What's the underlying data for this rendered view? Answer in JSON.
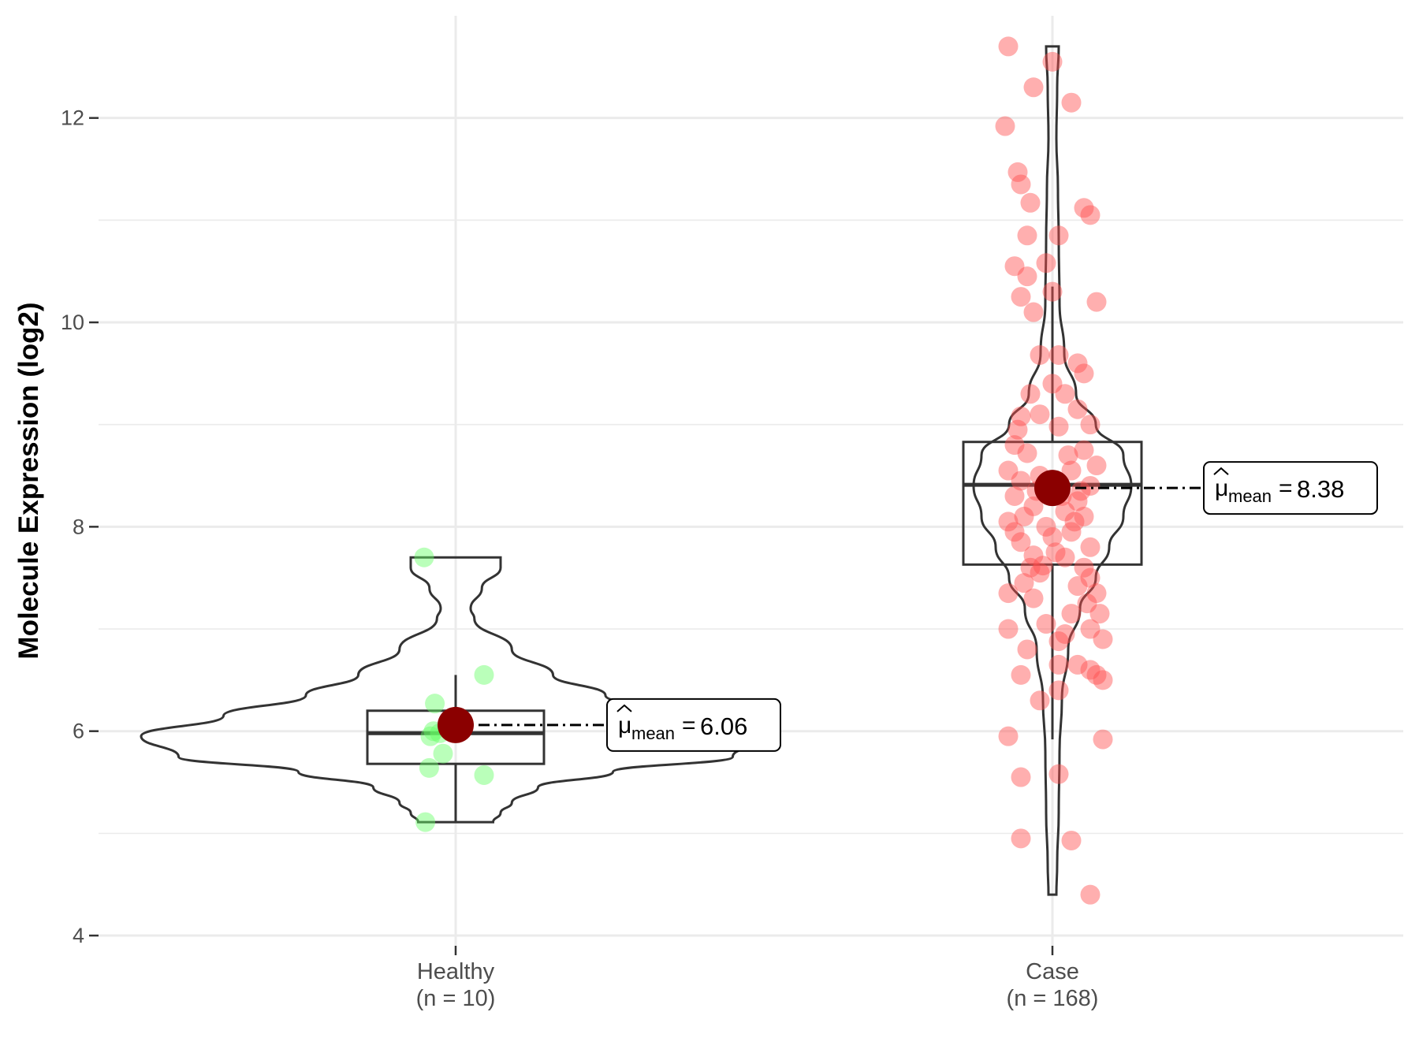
{
  "chart_data": {
    "type": "violin",
    "title": "",
    "xlabel": "",
    "ylabel": "Molecule Expression (log2)",
    "ylim": [
      3.9,
      13.0
    ],
    "y_ticks": [
      4,
      6,
      8,
      10,
      12
    ],
    "y_tick_labels": [
      "4",
      "6",
      "8",
      "10",
      "12"
    ],
    "grid": true,
    "groups": [
      {
        "name": "Healthy",
        "count_label": "(n = 10)",
        "color": "#66ff66",
        "mean": 6.06,
        "mean_label": "6.06",
        "box": {
          "q1": 5.68,
          "median": 5.98,
          "q3": 6.2,
          "whisker_low": 5.11,
          "whisker_high": 6.55
        },
        "violin_range": [
          5.11,
          7.7
        ],
        "violin_profile": [
          [
            5.11,
            0.5
          ],
          [
            5.2,
            0.6
          ],
          [
            5.3,
            0.75
          ],
          [
            5.45,
            1.1
          ],
          [
            5.6,
            2.1
          ],
          [
            5.75,
            3.7
          ],
          [
            5.95,
            4.2
          ],
          [
            6.15,
            3.1
          ],
          [
            6.35,
            2.0
          ],
          [
            6.55,
            1.3
          ],
          [
            6.8,
            0.75
          ],
          [
            7.1,
            0.25
          ],
          [
            7.2,
            0.2
          ],
          [
            7.4,
            0.35
          ],
          [
            7.6,
            0.6
          ],
          [
            7.7,
            0.6
          ]
        ],
        "points": [
          [
            -0.5,
            7.7
          ],
          [
            0.45,
            6.55
          ],
          [
            -0.33,
            6.27
          ],
          [
            -0.35,
            6.0
          ],
          [
            -0.4,
            5.95
          ],
          [
            -0.2,
            5.78
          ],
          [
            -0.42,
            5.64
          ],
          [
            0.45,
            5.57
          ],
          [
            -0.48,
            5.11
          ],
          [
            -0.25,
            5.98
          ]
        ]
      },
      {
        "name": "Case",
        "count_label": "(n = 168)",
        "color": "#ff4d4d",
        "mean": 8.38,
        "mean_label": "8.38",
        "box": {
          "q1": 7.63,
          "median": 8.41,
          "q3": 8.83,
          "whisker_low": 5.92,
          "whisker_high": 10.35
        },
        "violin_range": [
          4.4,
          12.7
        ],
        "violin_profile": [
          [
            4.4,
            0.05
          ],
          [
            4.7,
            0.06
          ],
          [
            5.2,
            0.08
          ],
          [
            5.8,
            0.09
          ],
          [
            6.3,
            0.12
          ],
          [
            6.8,
            0.2
          ],
          [
            7.2,
            0.35
          ],
          [
            7.5,
            0.55
          ],
          [
            7.8,
            0.72
          ],
          [
            8.1,
            0.9
          ],
          [
            8.4,
            1.0
          ],
          [
            8.7,
            0.9
          ],
          [
            9.0,
            0.55
          ],
          [
            9.3,
            0.3
          ],
          [
            9.7,
            0.15
          ],
          [
            10.2,
            0.09
          ],
          [
            10.8,
            0.08
          ],
          [
            11.3,
            0.07
          ],
          [
            11.8,
            0.05
          ],
          [
            12.3,
            0.06
          ],
          [
            12.7,
            0.08
          ]
        ],
        "points": [
          [
            -0.7,
            12.7
          ],
          [
            0.0,
            12.55
          ],
          [
            -0.3,
            12.3
          ],
          [
            0.3,
            12.15
          ],
          [
            -0.75,
            11.92
          ],
          [
            -0.55,
            11.47
          ],
          [
            -0.5,
            11.35
          ],
          [
            -0.35,
            11.17
          ],
          [
            0.5,
            11.12
          ],
          [
            0.6,
            11.05
          ],
          [
            -0.4,
            10.85
          ],
          [
            0.1,
            10.85
          ],
          [
            -0.6,
            10.55
          ],
          [
            -0.1,
            10.58
          ],
          [
            -0.4,
            10.45
          ],
          [
            0.0,
            10.3
          ],
          [
            -0.5,
            10.25
          ],
          [
            -0.3,
            10.1
          ],
          [
            0.7,
            10.2
          ],
          [
            -0.2,
            9.68
          ],
          [
            0.1,
            9.68
          ],
          [
            0.4,
            9.6
          ],
          [
            0.5,
            9.5
          ],
          [
            -0.35,
            9.3
          ],
          [
            0.0,
            9.4
          ],
          [
            0.2,
            9.3
          ],
          [
            -0.5,
            9.08
          ],
          [
            0.4,
            9.15
          ],
          [
            -0.2,
            9.1
          ],
          [
            0.1,
            8.98
          ],
          [
            0.6,
            9.0
          ],
          [
            -0.6,
            8.8
          ],
          [
            -0.4,
            8.72
          ],
          [
            0.5,
            8.75
          ],
          [
            0.7,
            8.6
          ],
          [
            -0.7,
            8.55
          ],
          [
            0.3,
            8.55
          ],
          [
            -0.5,
            8.45
          ],
          [
            -0.2,
            8.5
          ],
          [
            0.6,
            8.4
          ],
          [
            -0.6,
            8.3
          ],
          [
            0.4,
            8.25
          ],
          [
            -0.3,
            8.2
          ],
          [
            0.2,
            8.15
          ],
          [
            0.5,
            8.1
          ],
          [
            -0.7,
            8.05
          ],
          [
            -0.1,
            8.0
          ],
          [
            0.3,
            7.95
          ],
          [
            -0.5,
            7.85
          ],
          [
            0.0,
            7.9
          ],
          [
            0.6,
            7.8
          ],
          [
            -0.3,
            7.72
          ],
          [
            0.2,
            7.7
          ],
          [
            -0.15,
            7.62
          ],
          [
            0.5,
            7.6
          ],
          [
            0.6,
            7.5
          ],
          [
            -0.45,
            7.45
          ],
          [
            0.4,
            7.42
          ],
          [
            -0.7,
            7.35
          ],
          [
            0.7,
            7.35
          ],
          [
            -0.3,
            7.3
          ],
          [
            0.55,
            7.25
          ],
          [
            0.75,
            7.15
          ],
          [
            -0.1,
            7.05
          ],
          [
            0.6,
            7.0
          ],
          [
            -0.7,
            7.0
          ],
          [
            0.2,
            6.95
          ],
          [
            -0.4,
            6.8
          ],
          [
            0.8,
            6.9
          ],
          [
            0.1,
            6.88
          ],
          [
            -0.5,
            6.55
          ],
          [
            0.4,
            6.65
          ],
          [
            0.1,
            6.65
          ],
          [
            0.7,
            6.55
          ],
          [
            0.8,
            6.5
          ],
          [
            -0.2,
            6.3
          ],
          [
            0.1,
            6.4
          ],
          [
            0.6,
            6.6
          ],
          [
            -0.7,
            5.95
          ],
          [
            0.8,
            5.92
          ],
          [
            0.1,
            5.58
          ],
          [
            -0.5,
            5.55
          ],
          [
            -0.5,
            4.95
          ],
          [
            0.3,
            4.93
          ],
          [
            0.6,
            4.4
          ],
          [
            -0.55,
            8.95
          ],
          [
            0.25,
            8.7
          ],
          [
            0.45,
            8.35
          ],
          [
            -0.25,
            8.35
          ],
          [
            -0.45,
            8.1
          ],
          [
            0.15,
            8.3
          ],
          [
            0.35,
            8.05
          ],
          [
            -0.6,
            7.95
          ],
          [
            0.05,
            7.75
          ],
          [
            -0.2,
            7.55
          ],
          [
            0.3,
            7.15
          ],
          [
            -0.35,
            7.6
          ]
        ]
      }
    ]
  }
}
